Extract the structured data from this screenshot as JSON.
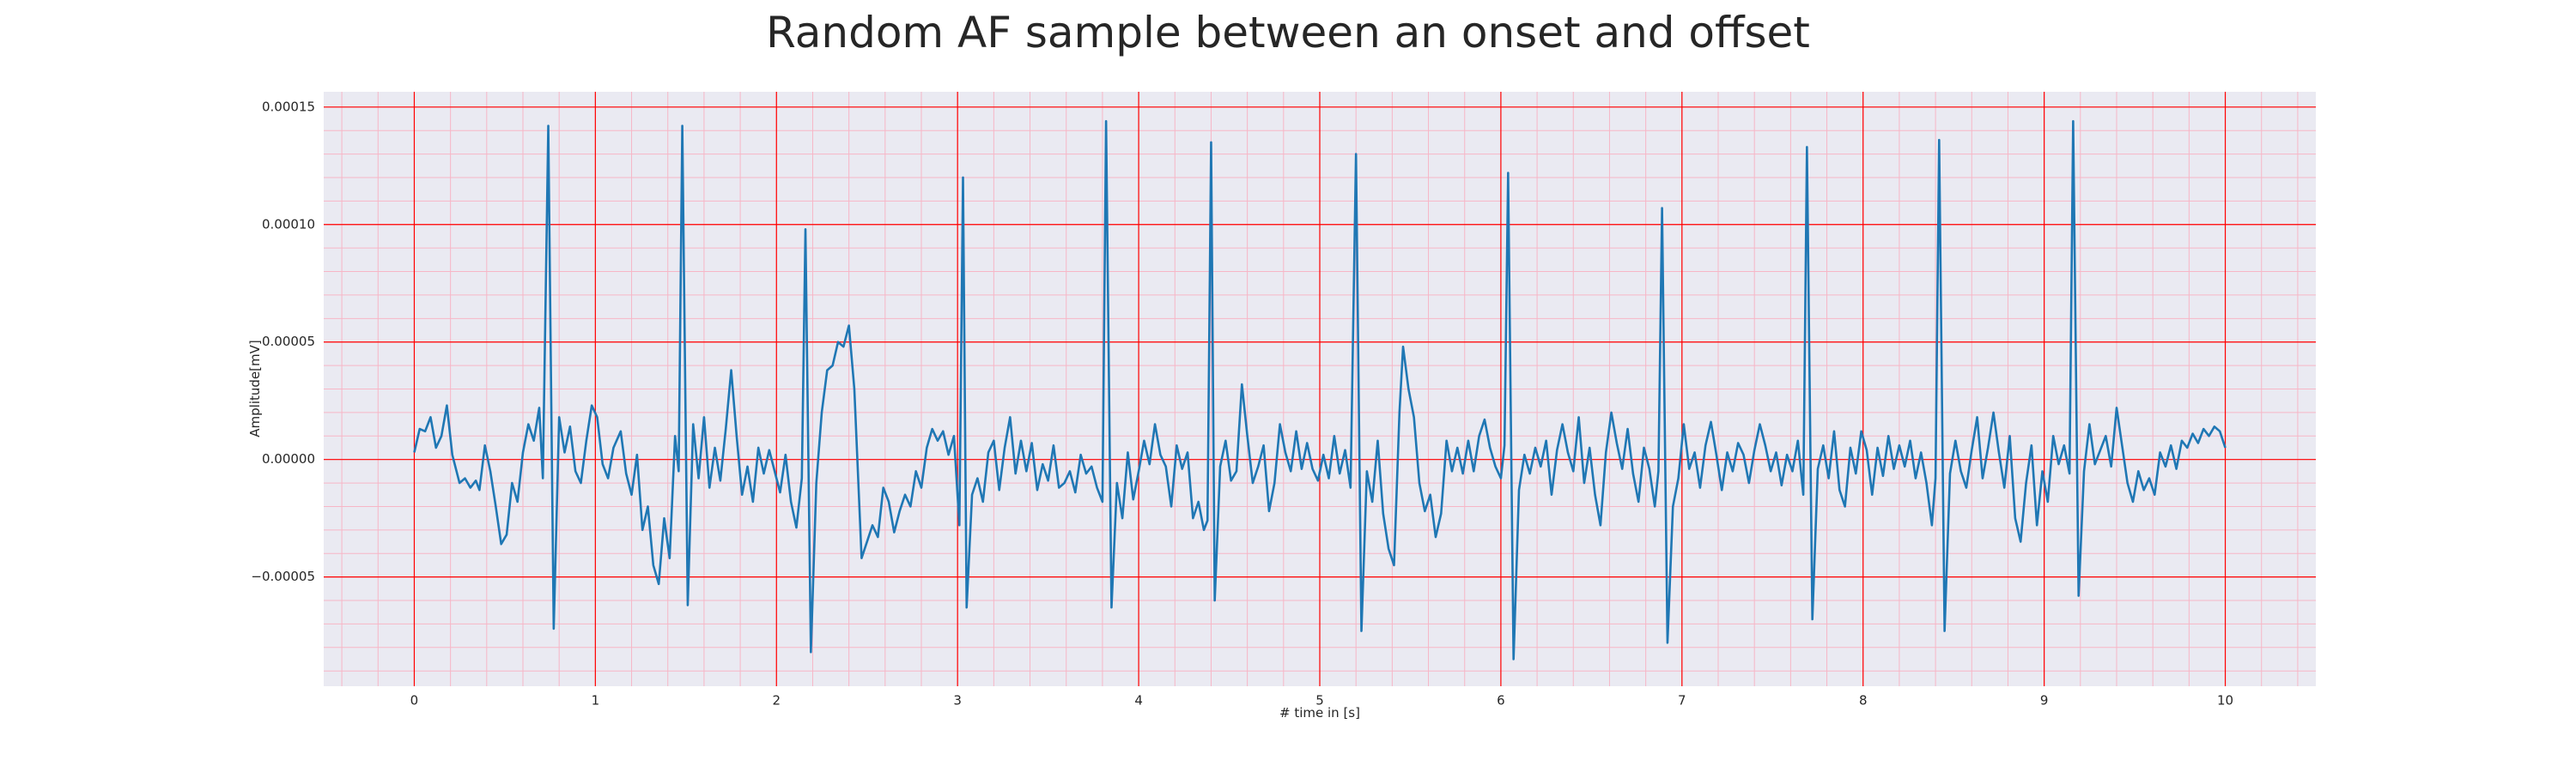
{
  "chart_data": {
    "type": "line",
    "title": "Random AF sample between an onset and offset",
    "xlabel": "# time in [s]",
    "ylabel": "Amplitude[mV]",
    "color": "#1f77b4",
    "background": "#eaeaf2",
    "grid": true,
    "grid_color": "#ff0000",
    "minor_grid": true,
    "minor_grid_color": "#f7b6c6",
    "xlim": [
      -0.5,
      10.5
    ],
    "ylim": [
      -9.65e-05,
      0.0001565
    ],
    "xticks": [
      0,
      1,
      2,
      3,
      4,
      5,
      6,
      7,
      8,
      9,
      10
    ],
    "yticks": [
      {
        "value": -5e-05,
        "label": "−0.00005"
      },
      {
        "value": 0,
        "label": "0.00000"
      },
      5e-05,
      {
        "value": 0.0001,
        "label": "0.00010"
      },
      0.00015
    ],
    "x": [
      0.0,
      0.03,
      0.06,
      0.09,
      0.12,
      0.15,
      0.18,
      0.21,
      0.25,
      0.28,
      0.31,
      0.34,
      0.36,
      0.39,
      0.42,
      0.45,
      0.48,
      0.51,
      0.54,
      0.57,
      0.6,
      0.63,
      0.66,
      0.69,
      0.71,
      0.74,
      0.77,
      0.8,
      0.83,
      0.86,
      0.89,
      0.92,
      0.95,
      0.98,
      1.01,
      1.04,
      1.07,
      1.1,
      1.14,
      1.17,
      1.2,
      1.23,
      1.26,
      1.29,
      1.32,
      1.35,
      1.38,
      1.41,
      1.44,
      1.46,
      1.48,
      1.51,
      1.54,
      1.57,
      1.6,
      1.63,
      1.66,
      1.69,
      1.72,
      1.75,
      1.78,
      1.81,
      1.84,
      1.87,
      1.9,
      1.93,
      1.96,
      1.99,
      2.02,
      2.05,
      2.08,
      2.11,
      2.14,
      2.16,
      2.19,
      2.22,
      2.25,
      2.28,
      2.31,
      2.34,
      2.37,
      2.4,
      2.43,
      2.47,
      2.5,
      2.53,
      2.56,
      2.59,
      2.62,
      2.65,
      2.68,
      2.71,
      2.74,
      2.77,
      2.8,
      2.83,
      2.86,
      2.89,
      2.92,
      2.95,
      2.98,
      3.01,
      3.03,
      3.05,
      3.08,
      3.11,
      3.14,
      3.17,
      3.2,
      3.23,
      3.26,
      3.29,
      3.32,
      3.35,
      3.38,
      3.41,
      3.44,
      3.47,
      3.5,
      3.53,
      3.56,
      3.59,
      3.62,
      3.65,
      3.68,
      3.71,
      3.74,
      3.77,
      3.8,
      3.82,
      3.85,
      3.88,
      3.91,
      3.94,
      3.97,
      4.0,
      4.03,
      4.06,
      4.09,
      4.12,
      4.15,
      4.18,
      4.21,
      4.24,
      4.27,
      4.3,
      4.33,
      4.36,
      4.38,
      4.4,
      4.42,
      4.45,
      4.48,
      4.51,
      4.54,
      4.57,
      4.6,
      4.63,
      4.66,
      4.69,
      4.72,
      4.75,
      4.78,
      4.81,
      4.84,
      4.87,
      4.9,
      4.93,
      4.96,
      4.99,
      5.02,
      5.05,
      5.08,
      5.11,
      5.14,
      5.17,
      5.2,
      5.23,
      5.26,
      5.29,
      5.32,
      5.35,
      5.38,
      5.41,
      5.44,
      5.46,
      5.49,
      5.52,
      5.55,
      5.58,
      5.61,
      5.64,
      5.67,
      5.7,
      5.73,
      5.76,
      5.79,
      5.82,
      5.85,
      5.88,
      5.91,
      5.94,
      5.97,
      6.0,
      6.02,
      6.04,
      6.07,
      6.1,
      6.13,
      6.16,
      6.19,
      6.22,
      6.25,
      6.28,
      6.31,
      6.34,
      6.37,
      6.4,
      6.43,
      6.46,
      6.49,
      6.52,
      6.55,
      6.58,
      6.61,
      6.64,
      6.67,
      6.7,
      6.73,
      6.76,
      6.79,
      6.82,
      6.85,
      6.87,
      6.89,
      6.92,
      6.95,
      6.98,
      7.01,
      7.04,
      7.07,
      7.1,
      7.13,
      7.16,
      7.19,
      7.22,
      7.25,
      7.28,
      7.31,
      7.34,
      7.37,
      7.4,
      7.43,
      7.46,
      7.49,
      7.52,
      7.55,
      7.58,
      7.61,
      7.64,
      7.67,
      7.69,
      7.72,
      7.75,
      7.78,
      7.81,
      7.84,
      7.87,
      7.9,
      7.93,
      7.96,
      7.99,
      8.02,
      8.05,
      8.08,
      8.11,
      8.14,
      8.17,
      8.2,
      8.23,
      8.26,
      8.29,
      8.32,
      8.35,
      8.38,
      8.4,
      8.42,
      8.45,
      8.48,
      8.51,
      8.54,
      8.57,
      8.6,
      8.63,
      8.66,
      8.69,
      8.72,
      8.75,
      8.78,
      8.81,
      8.84,
      8.87,
      8.9,
      8.93,
      8.96,
      8.99,
      9.02,
      9.05,
      9.08,
      9.11,
      9.14,
      9.16,
      9.19,
      9.22,
      9.25,
      9.28,
      9.31,
      9.34,
      9.37,
      9.4,
      9.43,
      9.46,
      9.49,
      9.52,
      9.55,
      9.58,
      9.61,
      9.64,
      9.67,
      9.7,
      9.73,
      9.76,
      9.79,
      9.82,
      9.85,
      9.88,
      9.91,
      9.94,
      9.97,
      10.0
    ],
    "values": [
      3e-06,
      1.3e-05,
      1.2e-05,
      1.8e-05,
      5e-06,
      1e-05,
      2.3e-05,
      2e-06,
      -1e-05,
      -8e-06,
      -1.2e-05,
      -9e-06,
      -1.3e-05,
      6e-06,
      -5e-06,
      -2e-05,
      -3.6e-05,
      -3.2e-05,
      -1e-05,
      -1.8e-05,
      3e-06,
      1.5e-05,
      8e-06,
      2.2e-05,
      -8e-06,
      0.000142,
      -7.2e-05,
      1.8e-05,
      3e-06,
      1.4e-05,
      -5e-06,
      -1e-05,
      8e-06,
      2.3e-05,
      1.8e-05,
      -2e-06,
      -8e-06,
      5e-06,
      1.2e-05,
      -6e-06,
      -1.5e-05,
      2e-06,
      -3e-05,
      -2e-05,
      -4.5e-05,
      -5.3e-05,
      -2.5e-05,
      -4.2e-05,
      1e-05,
      -5e-06,
      0.000142,
      -6.2e-05,
      1.5e-05,
      -8e-06,
      1.8e-05,
      -1.2e-05,
      5e-06,
      -9e-06,
      1.3e-05,
      3.8e-05,
      1e-05,
      -1.5e-05,
      -3e-06,
      -1.8e-05,
      5e-06,
      -6e-06,
      4e-06,
      -5e-06,
      -1.4e-05,
      2e-06,
      -1.8e-05,
      -2.9e-05,
      -8e-06,
      9.8e-05,
      -8.2e-05,
      -1e-05,
      2e-05,
      3.8e-05,
      4e-05,
      5e-05,
      4.8e-05,
      5.7e-05,
      3e-05,
      -4.2e-05,
      -3.5e-05,
      -2.8e-05,
      -3.3e-05,
      -1.2e-05,
      -1.8e-05,
      -3.1e-05,
      -2.2e-05,
      -1.5e-05,
      -2e-05,
      -5e-06,
      -1.2e-05,
      5e-06,
      1.3e-05,
      8e-06,
      1.2e-05,
      2e-06,
      1e-05,
      -2.8e-05,
      0.00012,
      -6.3e-05,
      -1.5e-05,
      -8e-06,
      -1.8e-05,
      3e-06,
      8e-06,
      -1.3e-05,
      5e-06,
      1.8e-05,
      -6e-06,
      8e-06,
      -5e-06,
      7e-06,
      -1.3e-05,
      -2e-06,
      -9e-06,
      6e-06,
      -1.2e-05,
      -1e-05,
      -5e-06,
      -1.4e-05,
      2e-06,
      -6e-06,
      -3e-06,
      -1.2e-05,
      -1.8e-05,
      0.000144,
      -6.3e-05,
      -1e-05,
      -2.5e-05,
      3e-06,
      -1.7e-05,
      -5e-06,
      8e-06,
      -2e-06,
      1.5e-05,
      2e-06,
      -3e-06,
      -2e-05,
      6e-06,
      -4e-06,
      3e-06,
      -2.5e-05,
      -1.8e-05,
      -3e-05,
      -2.6e-05,
      0.000135,
      -6e-05,
      -3e-06,
      8e-06,
      -9e-06,
      -5e-06,
      3.2e-05,
      1e-05,
      -1e-05,
      -3e-06,
      6e-06,
      -2.2e-05,
      -1e-05,
      1.5e-05,
      3e-06,
      -5e-06,
      1.2e-05,
      -4e-06,
      7e-06,
      -4e-06,
      -9e-06,
      2e-06,
      -8e-06,
      1e-05,
      -6e-06,
      4e-06,
      -1.2e-05,
      0.00013,
      -7.3e-05,
      -5e-06,
      -1.8e-05,
      8e-06,
      -2.3e-05,
      -3.8e-05,
      -4.5e-05,
      2e-05,
      4.8e-05,
      3e-05,
      1.8e-05,
      -1e-05,
      -2.2e-05,
      -1.5e-05,
      -3.3e-05,
      -2.3e-05,
      8e-06,
      -5e-06,
      5e-06,
      -6e-06,
      8e-06,
      -5e-06,
      1e-05,
      1.7e-05,
      5e-06,
      -3e-06,
      -8e-06,
      6e-06,
      0.000122,
      -8.5e-05,
      -1.3e-05,
      2e-06,
      -6e-06,
      5e-06,
      -3e-06,
      8e-06,
      -1.5e-05,
      4e-06,
      1.5e-05,
      3e-06,
      -5e-06,
      1.8e-05,
      -1e-05,
      5e-06,
      -1.5e-05,
      -2.8e-05,
      3e-06,
      2e-05,
      7e-06,
      -4e-06,
      1.3e-05,
      -6e-06,
      -1.8e-05,
      5e-06,
      -4e-06,
      -2e-05,
      -5e-06,
      0.000107,
      -7.8e-05,
      -2e-05,
      -8e-06,
      1.5e-05,
      -4e-06,
      3e-06,
      -1.2e-05,
      6e-06,
      1.6e-05,
      2e-06,
      -1.3e-05,
      3e-06,
      -5e-06,
      7e-06,
      2e-06,
      -1e-05,
      4e-06,
      1.5e-05,
      6e-06,
      -5e-06,
      3e-06,
      -1.1e-05,
      2e-06,
      -5e-06,
      8e-06,
      -1.5e-05,
      0.000133,
      -6.8e-05,
      -4e-06,
      6e-06,
      -8e-06,
      1.2e-05,
      -1.3e-05,
      -2e-05,
      5e-06,
      -6e-06,
      1.2e-05,
      4e-06,
      -1.5e-05,
      5e-06,
      -7e-06,
      1e-05,
      -4e-06,
      6e-06,
      -3e-06,
      8e-06,
      -8e-06,
      3e-06,
      -1e-05,
      -2.8e-05,
      -8e-06,
      0.000136,
      -7.3e-05,
      -6e-06,
      8e-06,
      -5e-06,
      -1.2e-05,
      4e-06,
      1.8e-05,
      -8e-06,
      5e-06,
      2e-05,
      3e-06,
      -1.2e-05,
      1e-05,
      -2.5e-05,
      -3.5e-05,
      -1e-05,
      6e-06,
      -2.8e-05,
      -5e-06,
      -1.8e-05,
      1e-05,
      -2e-06,
      6e-06,
      -6e-06,
      0.000144,
      -5.8e-05,
      -5e-06,
      1.5e-05,
      -2e-06,
      4e-06,
      1e-05,
      -3e-06,
      2.2e-05,
      6e-06,
      -1e-05,
      -1.8e-05,
      -5e-06,
      -1.3e-05,
      -8e-06,
      -1.5e-05,
      3e-06,
      -3e-06,
      6e-06,
      -4e-06,
      8e-06,
      5e-06,
      1.1e-05,
      7e-06,
      1.3e-05,
      1e-05,
      1.4e-05,
      1.2e-05,
      5e-06
    ]
  }
}
